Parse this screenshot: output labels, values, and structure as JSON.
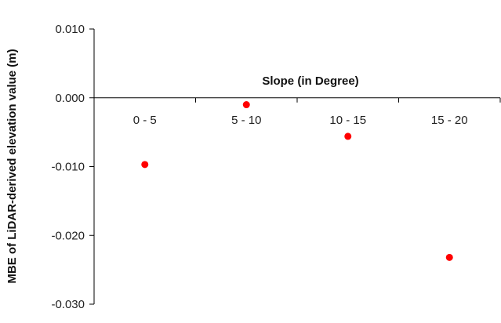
{
  "chart_data": {
    "type": "scatter",
    "categories": [
      "0 - 5",
      "5 - 10",
      "10 - 15",
      "15 - 20"
    ],
    "values": [
      -0.0097,
      -0.001,
      -0.0056,
      -0.0232
    ],
    "y_ticks": [
      "0.010",
      "0.000",
      "-0.010",
      "-0.020",
      "-0.030"
    ],
    "y_tick_values": [
      0.01,
      0.0,
      -0.01,
      -0.02,
      -0.03
    ],
    "ylim": [
      -0.03,
      0.01
    ],
    "xlabel": "Slope (in Degree)",
    "ylabel": "MBE of LiDAR-derived elevation value (m)",
    "grid": false,
    "legend": "none",
    "marker_color": "#ff0000",
    "axis_color": "#000000"
  }
}
